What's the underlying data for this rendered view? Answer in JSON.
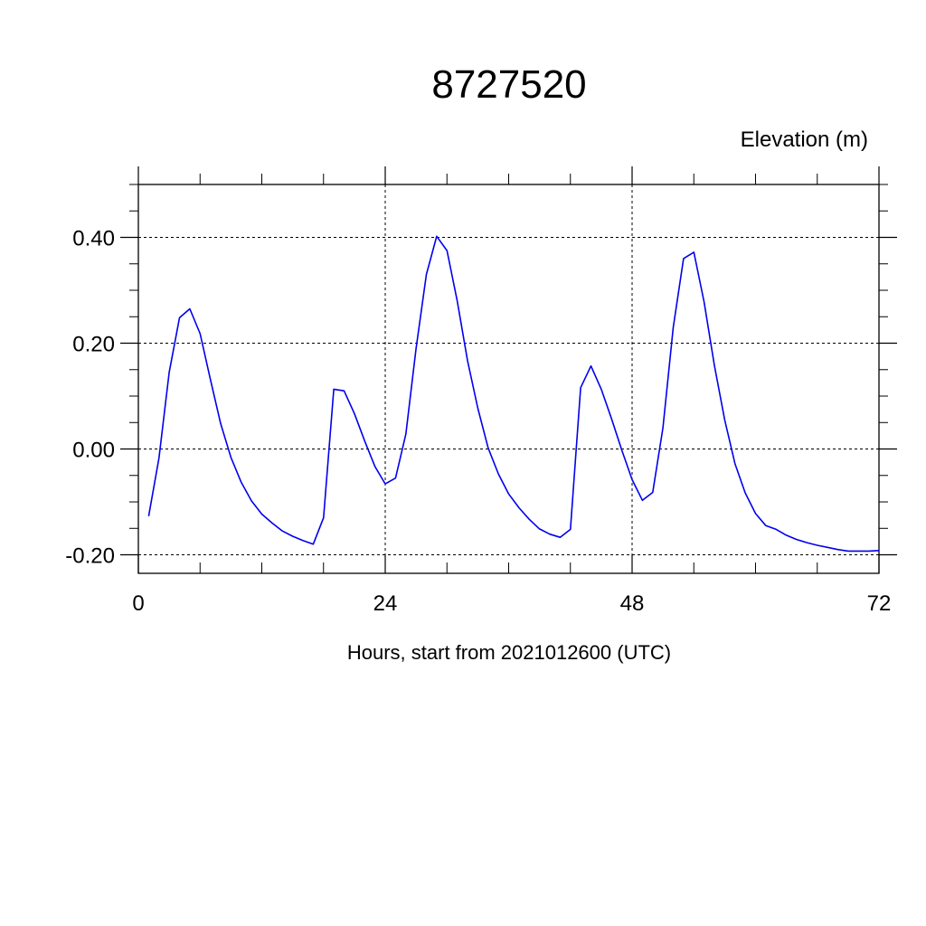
{
  "chart_data": {
    "type": "line",
    "title": "8727520",
    "ylabel": "Elevation (m)",
    "xlabel": "Hours, start from 2021012600 (UTC)",
    "xlim": [
      0,
      72
    ],
    "ylim": [
      -0.235,
      0.5
    ],
    "x_ticks": [
      0,
      24,
      48,
      72
    ],
    "x_tick_labels": [
      "0",
      "24",
      "48",
      "72"
    ],
    "y_ticks": [
      -0.2,
      0.0,
      0.2,
      0.4
    ],
    "y_tick_labels": [
      "-0.20",
      "0.00",
      "0.20",
      "0.40"
    ],
    "grid": true,
    "line_color": "#0000ee",
    "series": [
      {
        "x": [
          1,
          2,
          3,
          4,
          5,
          6,
          7,
          8,
          9,
          10,
          11,
          12,
          13,
          14,
          15,
          16,
          17,
          18,
          19,
          20,
          21,
          22,
          23,
          24,
          25,
          26,
          27,
          28,
          29,
          30,
          31,
          32,
          33,
          34,
          35,
          36,
          37,
          38,
          39,
          40,
          41,
          42,
          43,
          44,
          45,
          46,
          47,
          48,
          49,
          50,
          51,
          52,
          53,
          54,
          55,
          56,
          57,
          58,
          59,
          60,
          61,
          62,
          63,
          64,
          65,
          66,
          67,
          68,
          69,
          70,
          71,
          72
        ],
        "y": [
          -0.127,
          -0.017,
          0.145,
          0.248,
          0.265,
          0.218,
          0.132,
          0.048,
          -0.016,
          -0.063,
          -0.098,
          -0.123,
          -0.14,
          -0.155,
          -0.165,
          -0.173,
          -0.18,
          -0.13,
          0.113,
          0.11,
          0.067,
          0.015,
          -0.033,
          -0.066,
          -0.055,
          0.028,
          0.19,
          0.33,
          0.402,
          0.375,
          0.28,
          0.167,
          0.077,
          0.002,
          -0.047,
          -0.085,
          -0.111,
          -0.133,
          -0.151,
          -0.161,
          -0.167,
          -0.152,
          0.116,
          0.157,
          0.113,
          0.057,
          -0.002,
          -0.058,
          -0.097,
          -0.082,
          0.04,
          0.23,
          0.36,
          0.372,
          0.278,
          0.158,
          0.055,
          -0.028,
          -0.083,
          -0.122,
          -0.145,
          -0.152,
          -0.163,
          -0.171,
          -0.177,
          -0.182,
          -0.186,
          -0.19,
          -0.193,
          -0.193,
          -0.193,
          -0.192
        ]
      }
    ]
  }
}
